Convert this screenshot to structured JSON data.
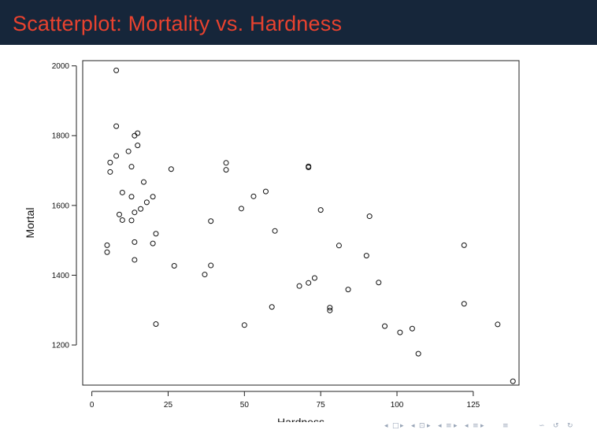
{
  "slide": {
    "title": "Scatterplot: Mortality vs. Hardness"
  },
  "colors": {
    "header_bg": "#16263a",
    "title": "#e8422f",
    "points": "#111111"
  },
  "chart_data": {
    "type": "scatter",
    "xlabel": "Hardness",
    "ylabel": "Mortal",
    "xlim": [
      -3,
      140
    ],
    "ylim": [
      1085,
      2015
    ],
    "xticks": [
      0,
      25,
      50,
      75,
      100,
      125
    ],
    "yticks": [
      1200,
      1400,
      1600,
      1800,
      2000
    ],
    "grid": false,
    "series": [
      {
        "points": [
          [
            8,
            1987
          ],
          [
            8,
            1827
          ],
          [
            14,
            1800
          ],
          [
            15,
            1807
          ],
          [
            15,
            1772
          ],
          [
            12,
            1755
          ],
          [
            8,
            1742
          ],
          [
            6,
            1723
          ],
          [
            6,
            1696
          ],
          [
            13,
            1711
          ],
          [
            26,
            1704
          ],
          [
            17,
            1667
          ],
          [
            10,
            1637
          ],
          [
            13,
            1625
          ],
          [
            20,
            1625
          ],
          [
            18,
            1609
          ],
          [
            16,
            1590
          ],
          [
            14,
            1580
          ],
          [
            9,
            1574
          ],
          [
            10,
            1558
          ],
          [
            13,
            1557
          ],
          [
            21,
            1519
          ],
          [
            14,
            1495
          ],
          [
            20,
            1491
          ],
          [
            5,
            1486
          ],
          [
            5,
            1466
          ],
          [
            14,
            1444
          ],
          [
            27,
            1427
          ],
          [
            21,
            1260
          ],
          [
            37,
            1402
          ],
          [
            39,
            1428
          ],
          [
            39,
            1555
          ],
          [
            44,
            1722
          ],
          [
            44,
            1702
          ],
          [
            49,
            1591
          ],
          [
            53,
            1626
          ],
          [
            57,
            1640
          ],
          [
            60,
            1527
          ],
          [
            50,
            1257
          ],
          [
            59,
            1309
          ],
          [
            68,
            1369
          ],
          [
            71,
            1378
          ],
          [
            73,
            1392
          ],
          [
            71,
            1712
          ],
          [
            71,
            1709
          ],
          [
            75,
            1587
          ],
          [
            78,
            1307
          ],
          [
            78,
            1299
          ],
          [
            81,
            1485
          ],
          [
            84,
            1359
          ],
          [
            90,
            1456
          ],
          [
            91,
            1569
          ],
          [
            94,
            1379
          ],
          [
            96,
            1254
          ],
          [
            101,
            1236
          ],
          [
            105,
            1247
          ],
          [
            107,
            1175
          ],
          [
            122,
            1486
          ],
          [
            122,
            1318
          ],
          [
            133,
            1259
          ],
          [
            138,
            1096
          ]
        ]
      }
    ]
  },
  "nav": {
    "symbols": [
      "◂",
      "□",
      "▸",
      "◂",
      "⊡",
      "▸",
      "◂",
      "≡",
      "▸",
      "◂",
      "≡",
      "▸",
      "≡",
      "∽",
      "↺",
      "↻"
    ]
  }
}
